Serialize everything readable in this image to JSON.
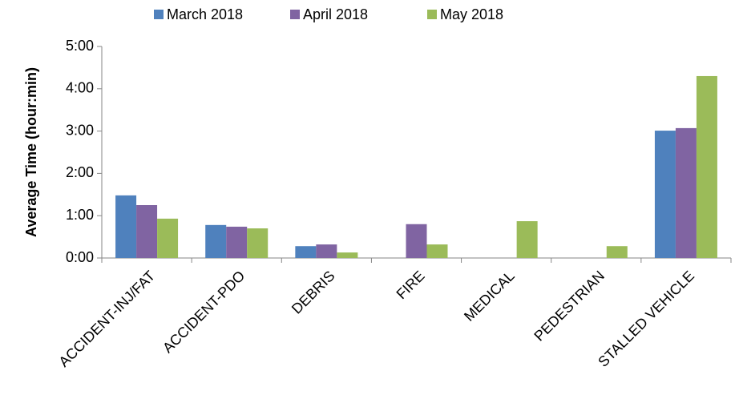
{
  "chart_data": {
    "type": "bar",
    "y_label": "Average Time (hour:min)",
    "categories": [
      "ACCIDENT-INJ/FAT",
      "ACCIDENT-PDO",
      "DEBRIS",
      "FIRE",
      "MEDICAL",
      "PEDESTRIAN",
      "STALLED VEHICLE"
    ],
    "series": [
      {
        "name": "March 2018",
        "color": "#4f81bd",
        "values": [
          1.48,
          0.78,
          0.28,
          0,
          0,
          0,
          3.01
        ]
      },
      {
        "name": "April 2018",
        "color": "#8064a2",
        "values": [
          1.25,
          0.74,
          0.32,
          0.8,
          0,
          0,
          3.07
        ]
      },
      {
        "name": "May 2018",
        "color": "#9bbb59",
        "values": [
          0.93,
          0.7,
          0.13,
          0.32,
          0.87,
          0.28,
          4.3
        ]
      }
    ],
    "ylim": [
      0,
      5
    ],
    "yticks": [
      {
        "value": 0,
        "label": "0:00"
      },
      {
        "value": 1,
        "label": "1:00"
      },
      {
        "value": 2,
        "label": "2:00"
      },
      {
        "value": 3,
        "label": "3:00"
      },
      {
        "value": 4,
        "label": "4:00"
      },
      {
        "value": 5,
        "label": "5:00"
      }
    ],
    "grid": false,
    "legend": "top"
  }
}
